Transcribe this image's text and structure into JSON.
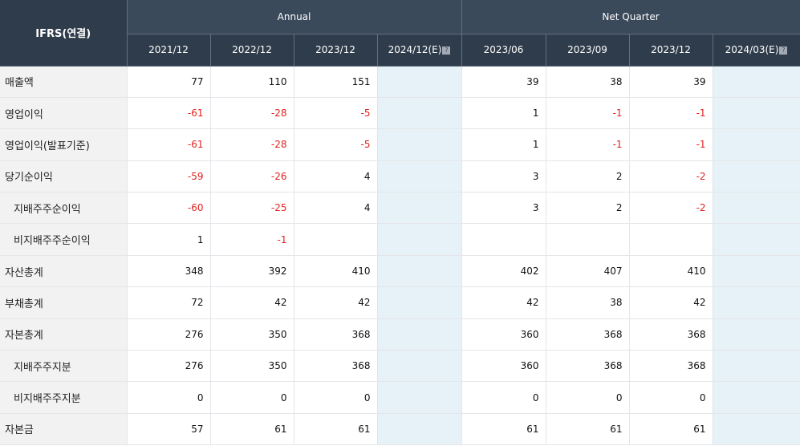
{
  "header": {
    "corner": "IFRS(연결)",
    "groups": {
      "annual": "Annual",
      "quarter": "Net Quarter"
    },
    "periods": [
      "2021/12",
      "2022/12",
      "2023/12",
      "2024/12(E)",
      "2023/06",
      "2023/09",
      "2023/12",
      "2024/03(E)"
    ]
  },
  "rows": [
    {
      "label": "매출액",
      "values": [
        "77",
        "110",
        "151",
        "",
        "39",
        "38",
        "39",
        ""
      ]
    },
    {
      "label": "영업이익",
      "values": [
        "-61",
        "-28",
        "-5",
        "",
        "1",
        "-1",
        "-1",
        ""
      ]
    },
    {
      "label": "영업이익(발표기준)",
      "values": [
        "-61",
        "-28",
        "-5",
        "",
        "1",
        "-1",
        "-1",
        ""
      ]
    },
    {
      "label": "당기순이익",
      "values": [
        "-59",
        "-26",
        "4",
        "",
        "3",
        "2",
        "-2",
        ""
      ]
    },
    {
      "label": "지배주주순이익",
      "values": [
        "-60",
        "-25",
        "4",
        "",
        "3",
        "2",
        "-2",
        ""
      ]
    },
    {
      "label": "비지배주주순이익",
      "values": [
        "1",
        "-1",
        "",
        "",
        "",
        "",
        "",
        ""
      ]
    },
    {
      "label": "자산총계",
      "values": [
        "348",
        "392",
        "410",
        "",
        "402",
        "407",
        "410",
        ""
      ]
    },
    {
      "label": "부채총계",
      "values": [
        "72",
        "42",
        "42",
        "",
        "42",
        "38",
        "42",
        ""
      ]
    },
    {
      "label": "자본총계",
      "values": [
        "276",
        "350",
        "368",
        "",
        "360",
        "368",
        "368",
        ""
      ]
    },
    {
      "label": "지배주주지분",
      "values": [
        "276",
        "350",
        "368",
        "",
        "360",
        "368",
        "368",
        ""
      ]
    },
    {
      "label": "비지배주주지분",
      "values": [
        "0",
        "0",
        "0",
        "",
        "0",
        "0",
        "0",
        ""
      ]
    },
    {
      "label": "자본금",
      "values": [
        "57",
        "61",
        "61",
        "",
        "61",
        "61",
        "61",
        ""
      ]
    }
  ],
  "colors": {
    "header_bg": "#3b4a5b",
    "estimate_bg": "#e6f2f7",
    "negative": "#e0231e",
    "label_bg": "#f2f2f2"
  },
  "icons": {
    "estimate_help": "help-icon"
  }
}
